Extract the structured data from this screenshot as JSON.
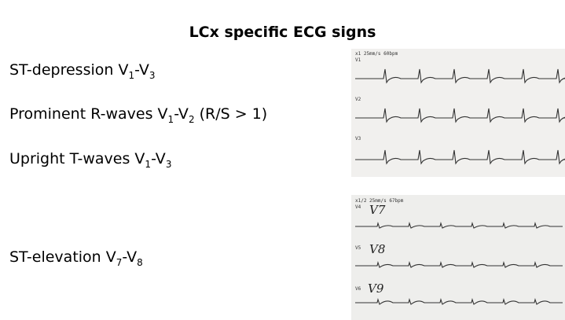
{
  "slide": {
    "title": "LCx specific ECG signs",
    "items": [
      {
        "segments": [
          {
            "t": "ST-depression V",
            "sub": false
          },
          {
            "t": "1",
            "sub": true
          },
          {
            "t": "-V",
            "sub": false
          },
          {
            "t": "3",
            "sub": true
          }
        ]
      },
      {
        "segments": [
          {
            "t": "Prominent R-waves V",
            "sub": false
          },
          {
            "t": "1",
            "sub": true
          },
          {
            "t": "-V",
            "sub": false
          },
          {
            "t": "2",
            "sub": true
          },
          {
            "t": " (R/S > 1)",
            "sub": false
          }
        ]
      },
      {
        "segments": [
          {
            "t": "Upright T-waves V",
            "sub": false
          },
          {
            "t": "1",
            "sub": true
          },
          {
            "t": "-V",
            "sub": false
          },
          {
            "t": "3",
            "sub": true
          }
        ]
      },
      {
        "segments": [
          {
            "t": "ST-elevation V",
            "sub": false
          },
          {
            "t": "7",
            "sub": true
          },
          {
            "t": "-V",
            "sub": false
          },
          {
            "t": "8",
            "sub": true
          }
        ]
      }
    ],
    "ecg_top": {
      "header": "x1   25mm/s   60bpm",
      "leads": [
        "V1",
        "V2",
        "V3"
      ]
    },
    "ecg_bottom": {
      "header": "x1/2   25mm/s   67bpm",
      "leads": [
        "V4",
        "V5",
        "V6"
      ],
      "handwritten": [
        "V7",
        "V8",
        "V9"
      ]
    }
  }
}
